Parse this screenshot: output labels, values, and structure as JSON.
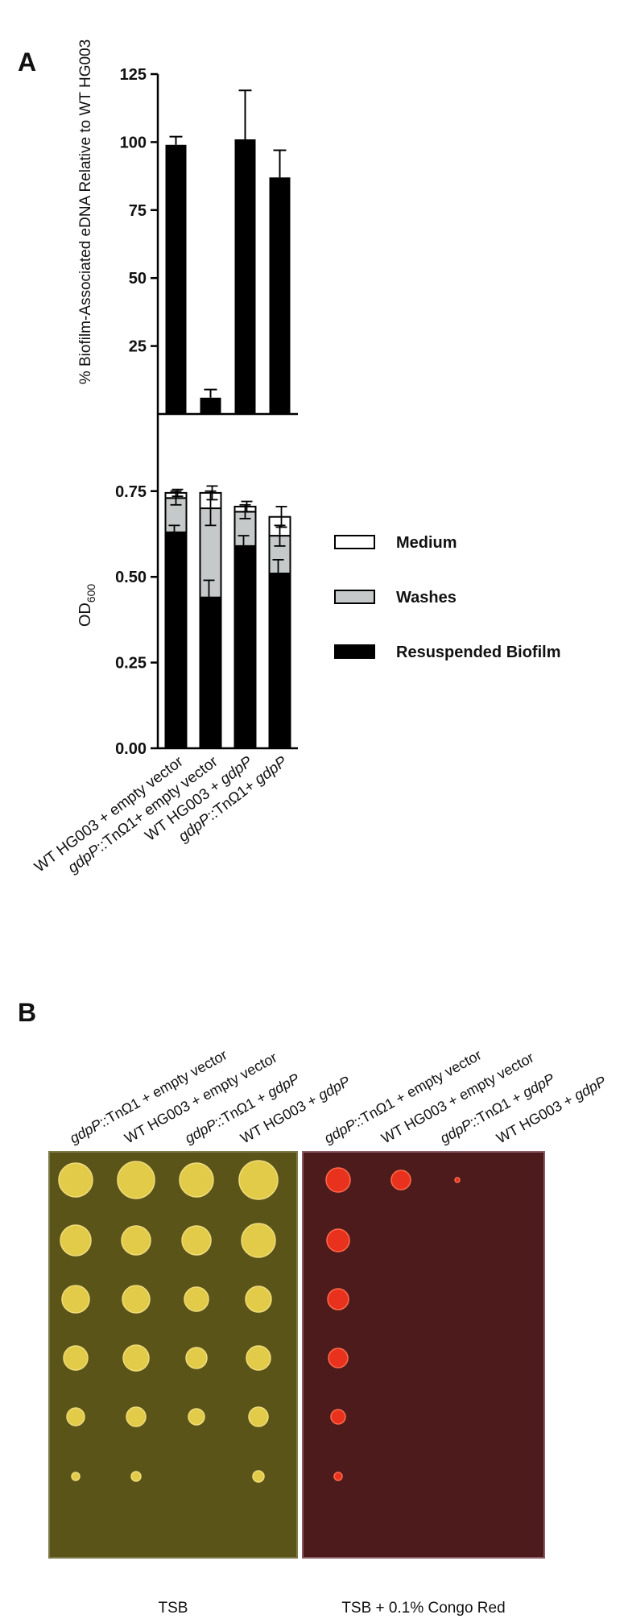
{
  "panel_labels": [
    "A",
    "B"
  ],
  "chart_data": [
    {
      "type": "bar",
      "ylabel": "% Biofilm-Associated eDNA Relative to WT  HG003",
      "values": [
        99,
        6,
        101,
        87
      ],
      "errors": [
        3,
        3,
        18,
        10
      ],
      "color": "#000000",
      "ylim": [
        0,
        125
      ],
      "yticks": [
        25,
        50,
        75,
        100,
        125
      ]
    },
    {
      "type": "stacked_bar",
      "ylabel": "OD",
      "ylabel_subscript": "600",
      "categories": [
        "WT HG003 + empty vector",
        "gdpP::TnΩ1+ empty vector",
        "WT HG003 + gdpP",
        "gdpP::TnΩ1+ gdpP"
      ],
      "series": [
        {
          "name": "Resuspended Biofilm",
          "color": "#000000",
          "values": [
            0.63,
            0.44,
            0.59,
            0.51
          ],
          "errors": [
            0.02,
            0.05,
            0.03,
            0.04
          ]
        },
        {
          "name": "Washes",
          "color": "#c5c9c9",
          "values": [
            0.1,
            0.26,
            0.1,
            0.11
          ],
          "errors": [
            0.02,
            0.05,
            0.02,
            0.03
          ]
        },
        {
          "name": "Medium",
          "color": "#ffffff",
          "values": [
            0.015,
            0.045,
            0.015,
            0.055
          ],
          "errors": [
            0.01,
            0.02,
            0.015,
            0.03
          ]
        }
      ],
      "ylim": [
        0,
        0.975
      ],
      "yticks": [
        {
          "value": 0,
          "label": "0.00"
        },
        {
          "value": 0.25,
          "label": "0.25"
        },
        {
          "value": 0.5,
          "label": "0.50"
        },
        {
          "value": 0.75,
          "label": "0.75"
        }
      ],
      "legend": "right"
    }
  ],
  "panel_b": {
    "plates": [
      {
        "label": "TSB",
        "color": "#5a5419",
        "columns": [
          "gdpP::TnΩ1 + empty vector",
          "WT HG003 + empty vector",
          "gdpP::TnΩ1 + gdpP",
          "WT HG003 + gdpP"
        ]
      },
      {
        "label": "TSB + 0.1% Congo Red",
        "color": "#4e1b1c",
        "columns": [
          "gdpP::TnΩ1 + empty vector",
          "WT HG003 + empty vector",
          "gdpP::TnΩ1 + gdpP",
          "WT HG003 + gdpP"
        ]
      }
    ]
  }
}
